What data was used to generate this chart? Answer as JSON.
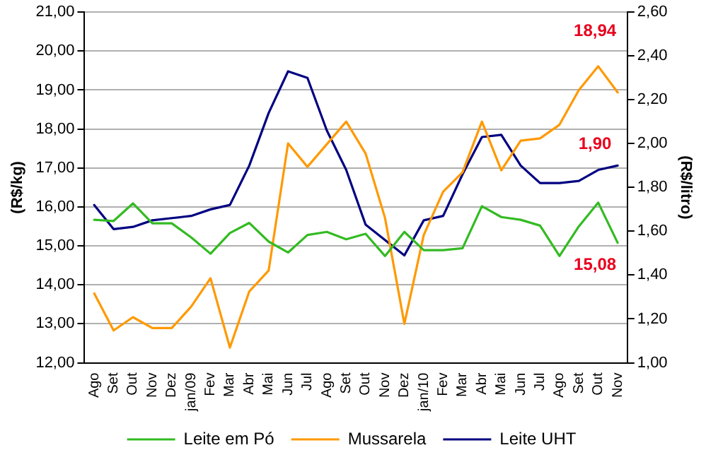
{
  "chart_data": {
    "type": "line",
    "ylabel": "(R$/kg)",
    "y2label": "(R$/litro)",
    "categories": [
      "Ago",
      "Set",
      "Out",
      "Nov",
      "Dez",
      "jan/09",
      "Fev",
      "Mar",
      "Abr",
      "Mai",
      "Jun",
      "Jul",
      "Ago",
      "Set",
      "Out",
      "Nov",
      "Dez",
      "jan/10",
      "Fev",
      "Mar",
      "Abr",
      "Mai",
      "Jun",
      "Jul",
      "Ago",
      "Set",
      "Out",
      "Nov"
    ],
    "series": [
      {
        "name": "Leite em Pó",
        "color": "#33bb22",
        "values": [
          15.67,
          15.64,
          16.09,
          15.58,
          15.58,
          15.22,
          14.8,
          15.33,
          15.59,
          15.11,
          14.83,
          15.28,
          15.36,
          15.17,
          15.31,
          14.74,
          15.36,
          14.89,
          14.89,
          14.94,
          16.02,
          15.74,
          15.67,
          15.52,
          14.74,
          15.5,
          16.11,
          15.08
        ]
      },
      {
        "name": "Mussarela",
        "color": "#ff9900",
        "values": [
          13.78,
          12.83,
          13.17,
          12.89,
          12.89,
          13.44,
          14.17,
          12.39,
          13.83,
          14.37,
          17.63,
          17.03,
          17.61,
          18.19,
          17.37,
          15.72,
          13.0,
          15.28,
          16.39,
          16.89,
          18.19,
          16.94,
          17.7,
          17.76,
          18.11,
          19.0,
          19.61,
          18.94
        ]
      },
      {
        "name": "Leite UHT",
        "color": "#000080",
        "axis": "y2",
        "values": [
          1.72,
          1.61,
          1.62,
          1.65,
          1.66,
          1.67,
          1.7,
          1.72,
          1.9,
          2.14,
          2.33,
          2.3,
          2.06,
          1.88,
          1.63,
          1.56,
          1.49,
          1.65,
          1.67,
          1.86,
          2.03,
          2.04,
          1.9,
          1.82,
          1.82,
          1.83,
          1.88,
          1.9
        ]
      }
    ],
    "annotations": [
      "18,94",
      "1,90",
      "15,08"
    ],
    "ylim": [
      12,
      21
    ],
    "yticks": [
      {
        "value": 12,
        "label": "12,00"
      },
      {
        "value": 13,
        "label": "13,00"
      },
      {
        "value": 14,
        "label": "14,00"
      },
      {
        "value": 15,
        "label": "15,00"
      },
      {
        "value": 16,
        "label": "16,00"
      },
      {
        "value": 17,
        "label": "17,00"
      },
      {
        "value": 18,
        "label": "18,00"
      },
      {
        "value": 19,
        "label": "19,00"
      },
      {
        "value": 20,
        "label": "20,00"
      },
      {
        "value": 21,
        "label": "21,00"
      }
    ],
    "y2lim": [
      1,
      2.6
    ],
    "y2ticks": [
      {
        "value": 1,
        "label": "1,00"
      },
      {
        "value": 1.2,
        "label": "1,20"
      },
      {
        "value": 1.4,
        "label": "1,40"
      },
      {
        "value": 1.6,
        "label": "1,60"
      },
      {
        "value": 1.8,
        "label": "1,80"
      },
      {
        "value": 2,
        "label": "2,00"
      },
      {
        "value": 2.2,
        "label": "2,20"
      },
      {
        "value": 2.4,
        "label": "2,40"
      },
      {
        "value": 2.6,
        "label": "2,60"
      }
    ],
    "grid": "y",
    "legend": "bottom",
    "marker": "none",
    "line_style": "solid"
  }
}
